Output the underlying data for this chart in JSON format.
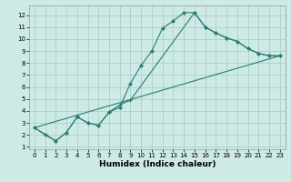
{
  "xlabel": "Humidex (Indice chaleur)",
  "background_color": "#ceeae6",
  "grid_color": "#aacfcc",
  "line_color": "#2a7d6e",
  "x_ticks": [
    0,
    1,
    2,
    3,
    4,
    5,
    6,
    7,
    8,
    9,
    10,
    11,
    12,
    13,
    14,
    15,
    16,
    17,
    18,
    19,
    20,
    21,
    22,
    23
  ],
  "y_ticks": [
    1,
    2,
    3,
    4,
    5,
    6,
    7,
    8,
    9,
    10,
    11,
    12
  ],
  "xlim": [
    -0.5,
    23.5
  ],
  "ylim": [
    0.8,
    12.8
  ],
  "series1_x": [
    0,
    1,
    2,
    3,
    4,
    5,
    6,
    7,
    8,
    9,
    10,
    11,
    12,
    13,
    14,
    15,
    16,
    17,
    18,
    19,
    20,
    21,
    22,
    23
  ],
  "series1_y": [
    2.6,
    2.0,
    1.5,
    2.2,
    3.5,
    3.0,
    2.8,
    3.9,
    4.3,
    6.3,
    7.8,
    9.0,
    10.9,
    11.5,
    12.2,
    12.2,
    11.0,
    10.5,
    10.1,
    9.8,
    9.2,
    8.8,
    8.6,
    8.6
  ],
  "series2_x": [
    0,
    2,
    3,
    4,
    5,
    6,
    7,
    8,
    9,
    15,
    16,
    17,
    18,
    19,
    20,
    21,
    22,
    23
  ],
  "series2_y": [
    2.6,
    1.5,
    2.2,
    3.5,
    3.0,
    2.8,
    3.9,
    4.5,
    4.9,
    12.2,
    11.0,
    10.5,
    10.1,
    9.8,
    9.2,
    8.8,
    8.6,
    8.6
  ],
  "series3_x": [
    0,
    23
  ],
  "series3_y": [
    2.6,
    8.6
  ]
}
